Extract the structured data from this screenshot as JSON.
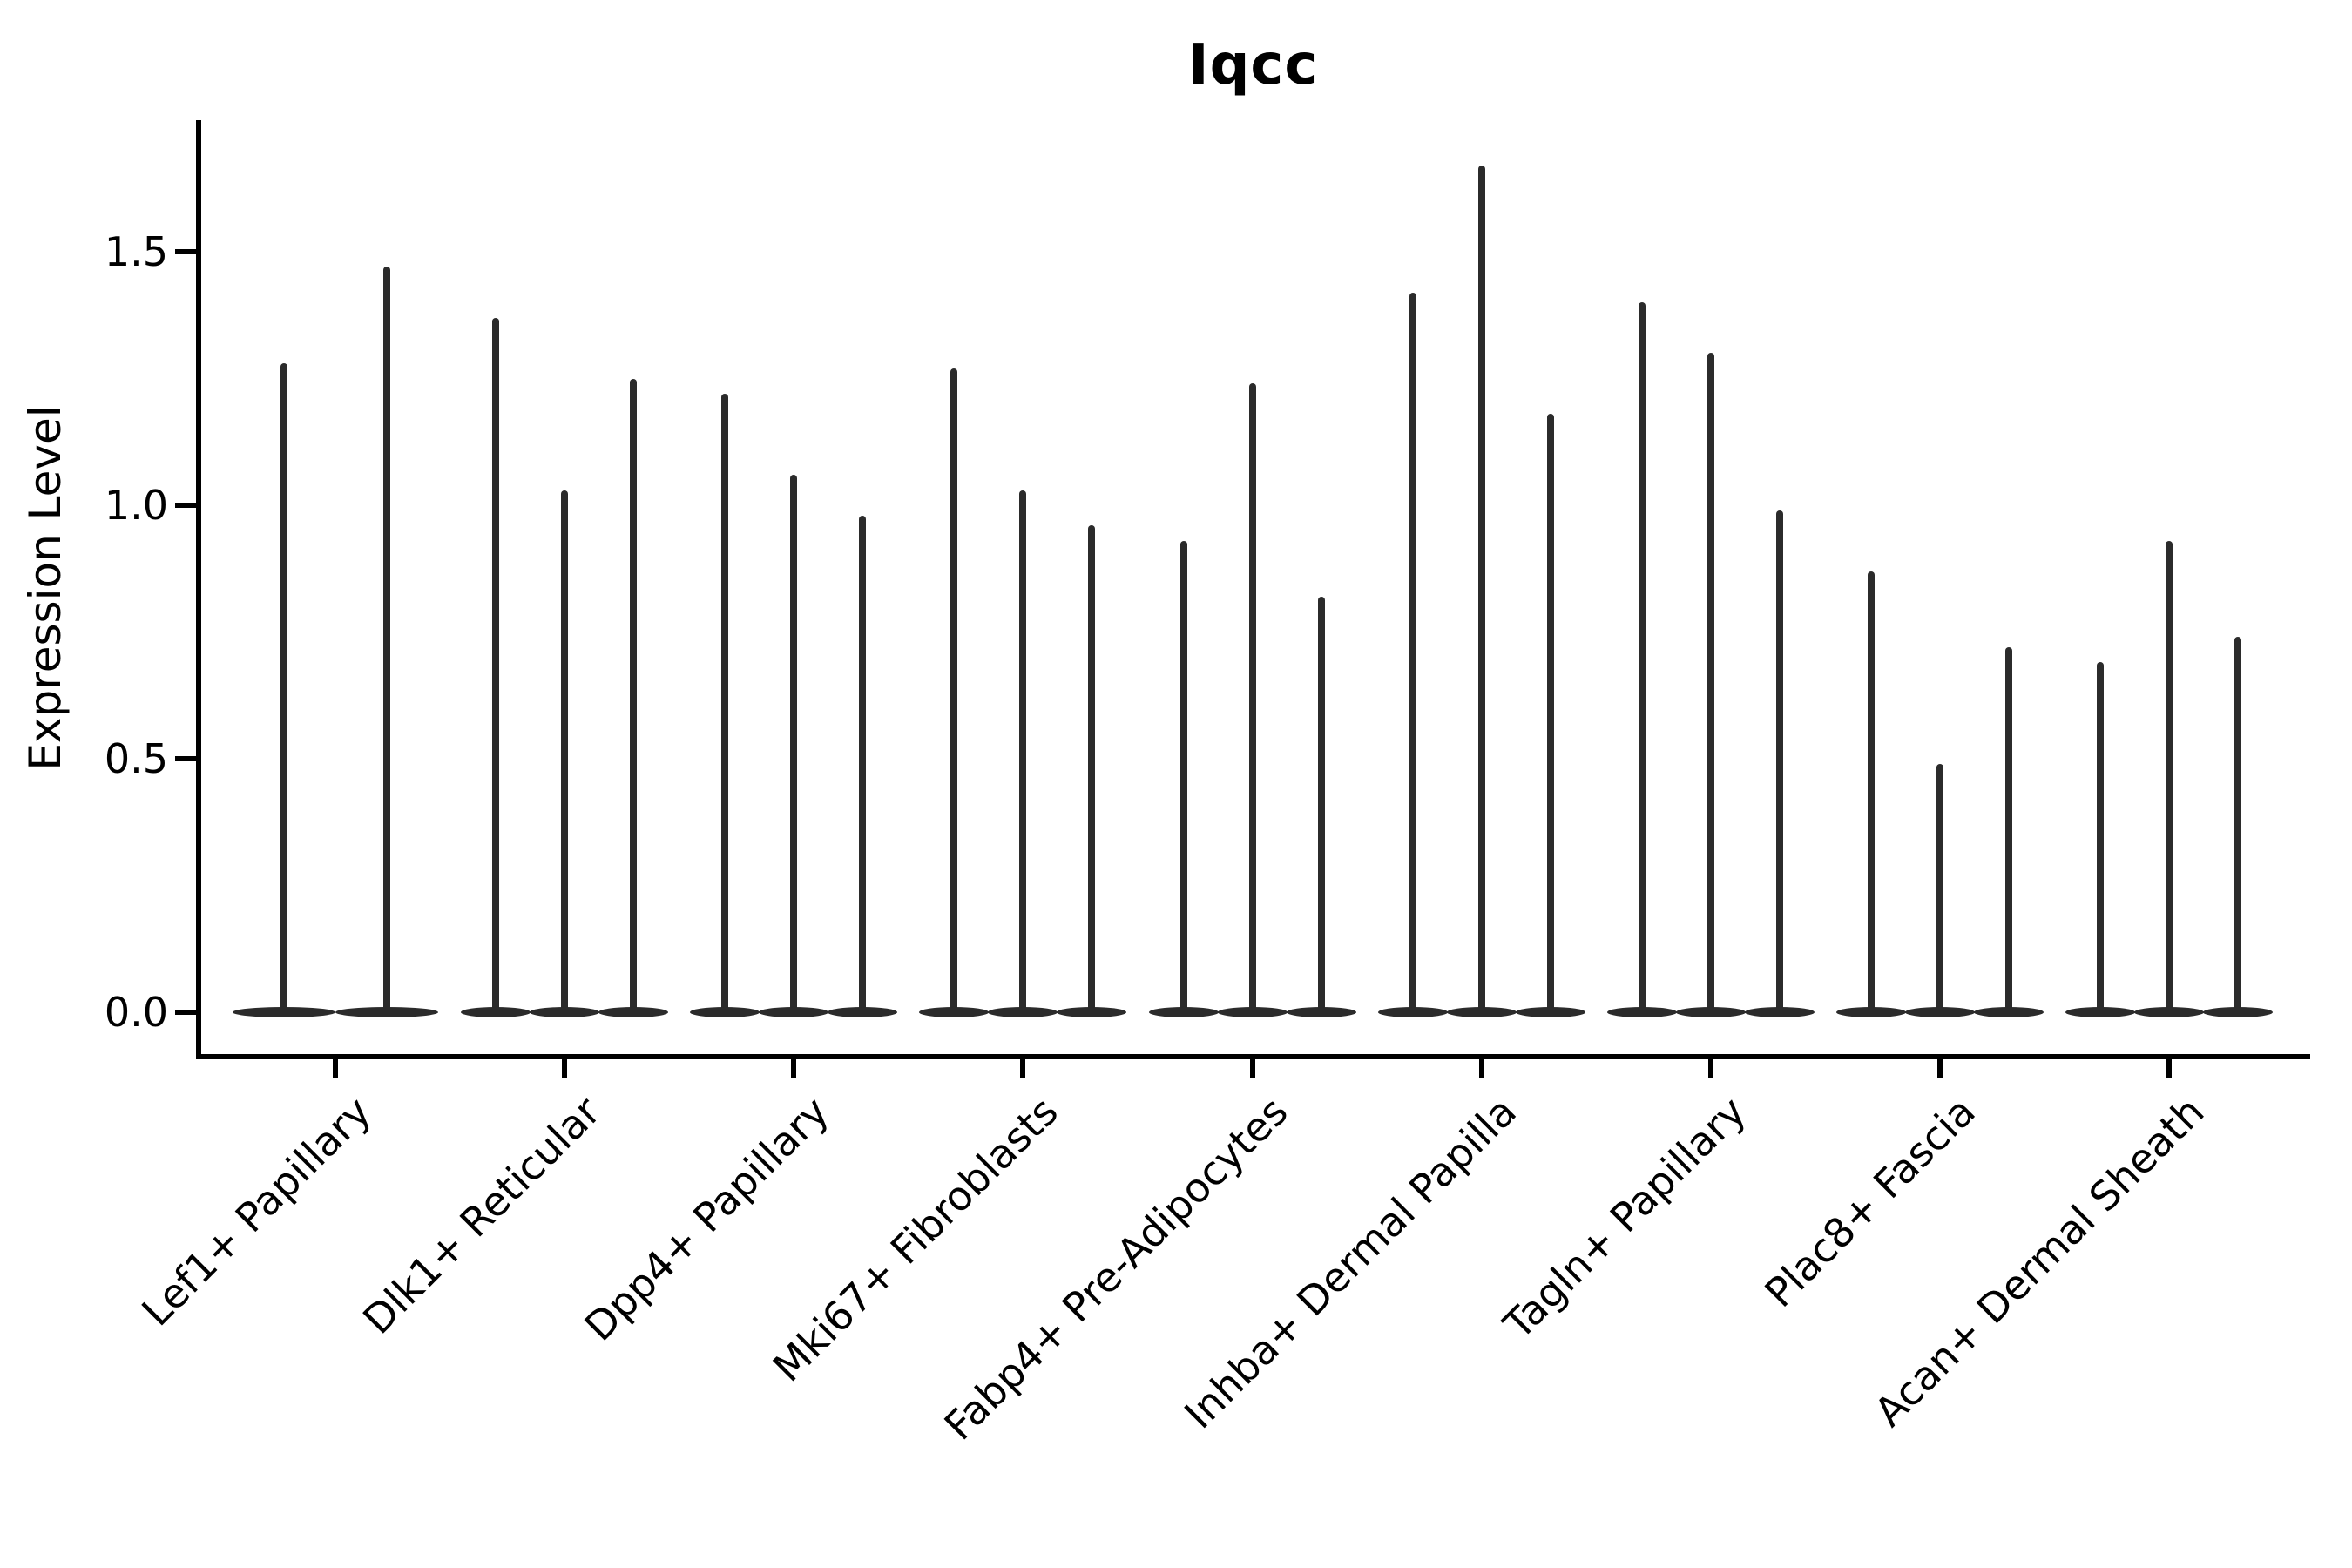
{
  "chart_data": {
    "type": "violin",
    "title": "Iqcc",
    "ylabel": "Expression Level",
    "xlabel": "",
    "ylim": [
      0,
      1.76
    ],
    "yticks": [
      0.0,
      0.5,
      1.0,
      1.5
    ],
    "yticklabels": [
      "0.0",
      "0.5",
      "1.0",
      "1.5"
    ],
    "grid": "off",
    "legend": "none",
    "description": "Violin plot of Iqcc expression; each category shows 2-3 collapsed violins (flat body at 0 with a thin tail rising to the max expression value).",
    "categories": [
      "Lef1+ Papillary",
      "Dlk1+ Reticular",
      "Dpp4+ Papillary",
      "Mki67+ Fibroblasts",
      "Fabp4+ Pre-Adipocytes",
      "Inhba+ Dermal Papilla",
      "Tagln+ Papillary",
      "Plac8+ Fascia",
      "Acan+ Dermal Sheath"
    ],
    "groups": [
      {
        "label": "Lef1+ Papillary",
        "violin_max_values": [
          1.28,
          1.47
        ]
      },
      {
        "label": "Dlk1+ Reticular",
        "violin_max_values": [
          1.37,
          1.03,
          1.25
        ]
      },
      {
        "label": "Dpp4+ Papillary",
        "violin_max_values": [
          1.22,
          1.06,
          0.98
        ]
      },
      {
        "label": "Mki67+ Fibroblasts",
        "violin_max_values": [
          1.27,
          1.03,
          0.96
        ]
      },
      {
        "label": "Fabp4+ Pre-Adipocytes",
        "violin_max_values": [
          0.93,
          1.24,
          0.82
        ]
      },
      {
        "label": "Inhba+ Dermal Papilla",
        "violin_max_values": [
          1.42,
          1.67,
          1.18
        ]
      },
      {
        "label": "Tagln+ Papillary",
        "violin_max_values": [
          1.4,
          1.3,
          0.99
        ]
      },
      {
        "label": "Plac8+ Fascia",
        "violin_max_values": [
          0.87,
          0.49,
          0.72
        ]
      },
      {
        "label": "Acan+ Dermal Sheath",
        "violin_max_values": [
          0.69,
          0.93,
          0.74
        ]
      }
    ],
    "baseline_value": 0.0,
    "colors": {
      "violin": "#2b2b2b",
      "axis": "#000000",
      "text": "#000000",
      "background": "#ffffff"
    }
  }
}
